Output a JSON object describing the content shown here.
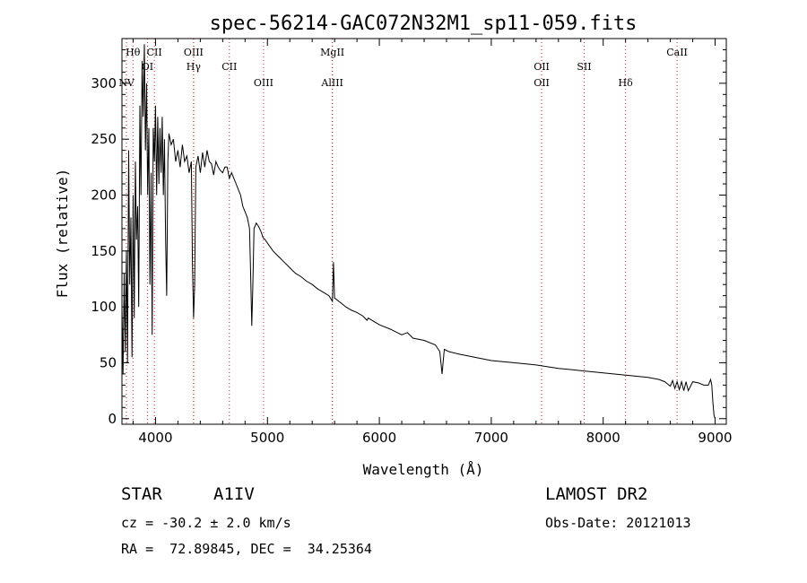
{
  "chart_data": {
    "type": "line",
    "title": "spec-56214-GAC072N32M1_sp11-059.fits",
    "xlabel": "Wavelength (Å)",
    "ylabel": "Flux (relative)",
    "xlim": [
      3700,
      9100
    ],
    "ylim": [
      -5,
      340
    ],
    "x_ticks": [
      4000,
      5000,
      6000,
      7000,
      8000,
      9000
    ],
    "y_ticks": [
      0,
      50,
      100,
      150,
      200,
      250,
      300
    ],
    "grid": false,
    "series": [
      {
        "x": [
          3700,
          3710,
          3720,
          3730,
          3740,
          3750,
          3760,
          3770,
          3780,
          3790,
          3800,
          3810,
          3820,
          3830,
          3840,
          3850,
          3860,
          3870,
          3880,
          3890,
          3900,
          3910,
          3920,
          3930,
          3940,
          3950,
          3960,
          3970,
          3980,
          3990,
          4000,
          4010,
          4020,
          4030,
          4040,
          4050,
          4060,
          4070,
          4080,
          4090,
          4100,
          4110,
          4120,
          4140,
          4160,
          4180,
          4200,
          4220,
          4240,
          4260,
          4280,
          4300,
          4320,
          4330,
          4340,
          4350,
          4360,
          4380,
          4400,
          4420,
          4440,
          4460,
          4480,
          4500,
          4520,
          4540,
          4560,
          4580,
          4600,
          4620,
          4640,
          4660,
          4680,
          4700,
          4720,
          4740,
          4760,
          4780,
          4800,
          4820,
          4840,
          4850,
          4860,
          4870,
          4880,
          4900,
          4920,
          4940,
          4960,
          4980,
          5000,
          5050,
          5100,
          5150,
          5200,
          5250,
          5300,
          5350,
          5400,
          5450,
          5500,
          5550,
          5580,
          5590,
          5600,
          5650,
          5700,
          5750,
          5800,
          5850,
          5890,
          5900,
          5950,
          6000,
          6100,
          6200,
          6250,
          6300,
          6400,
          6500,
          6540,
          6560,
          6580,
          6620,
          6700,
          6800,
          6900,
          7000,
          7200,
          7400,
          7600,
          7800,
          8000,
          8200,
          8400,
          8500,
          8550,
          8600,
          8620,
          8640,
          8660,
          8680,
          8700,
          8720,
          8740,
          8760,
          8800,
          8850,
          8900,
          8940,
          8960,
          8970,
          8980,
          8990,
          9000
        ],
        "y": [
          100,
          40,
          130,
          60,
          150,
          50,
          240,
          120,
          180,
          55,
          200,
          90,
          230,
          160,
          190,
          100,
          280,
          200,
          320,
          270,
          335,
          240,
          300,
          200,
          260,
          120,
          220,
          75,
          260,
          230,
          280,
          200,
          270,
          210,
          260,
          220,
          270,
          200,
          250,
          160,
          110,
          230,
          255,
          245,
          250,
          230,
          240,
          225,
          245,
          230,
          235,
          220,
          230,
          140,
          90,
          120,
          225,
          235,
          220,
          238,
          225,
          240,
          230,
          228,
          218,
          230,
          225,
          222,
          220,
          225,
          225,
          215,
          220,
          215,
          210,
          205,
          200,
          190,
          185,
          180,
          170,
          130,
          83,
          120,
          170,
          175,
          172,
          168,
          162,
          160,
          157,
          150,
          145,
          140,
          135,
          130,
          127,
          123,
          120,
          116,
          113,
          110,
          105,
          140,
          108,
          104,
          100,
          97,
          95,
          92,
          88,
          90,
          87,
          84,
          80,
          75,
          77,
          72,
          70,
          66,
          60,
          40,
          62,
          60,
          58,
          56,
          54,
          52,
          50,
          48,
          45,
          43,
          41,
          39,
          37,
          35,
          33,
          29,
          34,
          27,
          33,
          26,
          33,
          25,
          33,
          25,
          33,
          32,
          30,
          30,
          35,
          30,
          15,
          3,
          0
        ]
      }
    ],
    "line_markers": [
      {
        "label": "Hθ",
        "x": 3798,
        "row": 0
      },
      {
        "label": "NV",
        "x": 3740,
        "row": 2
      },
      {
        "label": "OI",
        "x": 3928,
        "row": 1
      },
      {
        "label": "CII",
        "x": 3990,
        "row": 0
      },
      {
        "label": "OIII",
        "x": 4340,
        "row": 0
      },
      {
        "label": "Hγ",
        "x": 4340,
        "row": 1
      },
      {
        "label": "CII",
        "x": 4660,
        "row": 1
      },
      {
        "label": "OIII",
        "x": 4965,
        "row": 2
      },
      {
        "label": "MgII",
        "x": 5580,
        "row": 0
      },
      {
        "label": "AlIII",
        "x": 5580,
        "row": 2
      },
      {
        "label": "OII",
        "x": 7450,
        "row": 1
      },
      {
        "label": "OII",
        "x": 7450,
        "row": 2
      },
      {
        "label": "SII",
        "x": 7830,
        "row": 1
      },
      {
        "label": "Hδ",
        "x": 8200,
        "row": 2
      },
      {
        "label": "CaII",
        "x": 8660,
        "row": 0
      }
    ]
  },
  "info": {
    "class_label": "STAR",
    "subclass": "A1IV",
    "survey": "LAMOST DR2",
    "cz_line": "cz = -30.2 ± 2.0 km/s",
    "obs_date": "Obs-Date: 20121013",
    "coords_line": "RA =  72.89845, DEC =  34.25364"
  }
}
